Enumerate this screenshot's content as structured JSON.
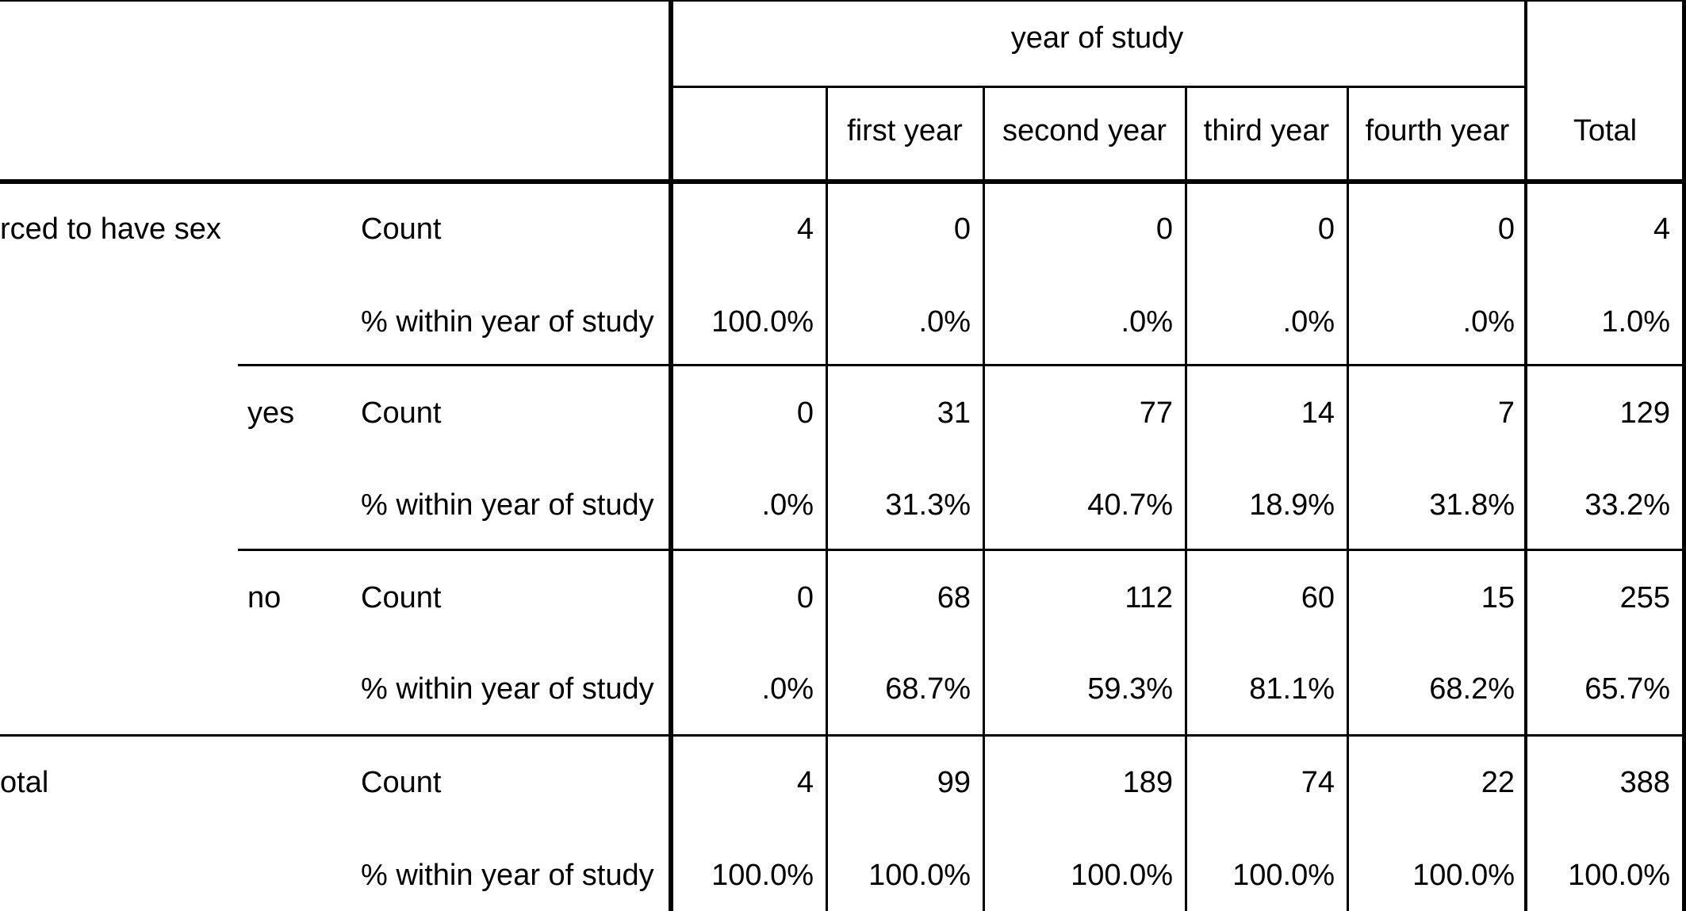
{
  "table": {
    "column_group_header": "year of study",
    "columns": [
      "",
      "first year",
      "second year",
      "third year",
      "fourth year"
    ],
    "total_header": "Total",
    "rows": [
      {
        "label": "rced to have sex",
        "sublabel": "",
        "stat": "Count",
        "values": [
          "4",
          "0",
          "0",
          "0",
          "0"
        ],
        "total": "4"
      },
      {
        "label": "",
        "sublabel": "",
        "stat": "% within year of study",
        "values": [
          "100.0%",
          ".0%",
          ".0%",
          ".0%",
          ".0%"
        ],
        "total": "1.0%"
      },
      {
        "label": "",
        "sublabel": "yes",
        "stat": "Count",
        "values": [
          "0",
          "31",
          "77",
          "14",
          "7"
        ],
        "total": "129"
      },
      {
        "label": "",
        "sublabel": "",
        "stat": "% within year of study",
        "values": [
          ".0%",
          "31.3%",
          "40.7%",
          "18.9%",
          "31.8%"
        ],
        "total": "33.2%"
      },
      {
        "label": "",
        "sublabel": "no",
        "stat": "Count",
        "values": [
          "0",
          "68",
          "112",
          "60",
          "15"
        ],
        "total": "255"
      },
      {
        "label": "",
        "sublabel": "",
        "stat": "% within year of study",
        "values": [
          ".0%",
          "68.7%",
          "59.3%",
          "81.1%",
          "68.2%"
        ],
        "total": "65.7%"
      },
      {
        "label": "otal",
        "sublabel": "",
        "stat": "Count",
        "values": [
          "4",
          "99",
          "189",
          "74",
          "22"
        ],
        "total": "388"
      },
      {
        "label": "",
        "sublabel": "",
        "stat": "% within year of study",
        "values": [
          "100.0%",
          "100.0%",
          "100.0%",
          "100.0%",
          "100.0%"
        ],
        "total": "100.0%"
      }
    ]
  }
}
